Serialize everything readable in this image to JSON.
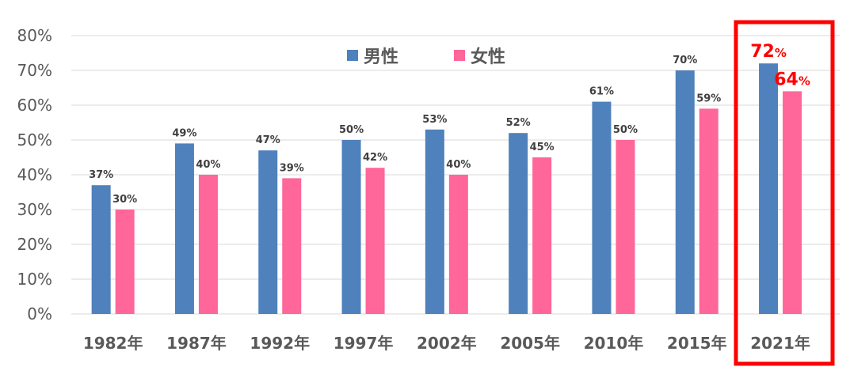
{
  "chart_data": {
    "type": "bar",
    "categories": [
      "1982年",
      "1987年",
      "1992年",
      "1997年",
      "2002年",
      "2005年",
      "2010年",
      "2015年",
      "2021年"
    ],
    "series": [
      {
        "name": "男性",
        "values": [
          37,
          49,
          47,
          50,
          53,
          52,
          61,
          70,
          72
        ]
      },
      {
        "name": "女性",
        "values": [
          30,
          40,
          39,
          42,
          40,
          45,
          50,
          59,
          64
        ]
      }
    ],
    "data_labels": [
      [
        "37%",
        "49%",
        "47%",
        "50%",
        "53%",
        "52%",
        "61%",
        "70%",
        "72%"
      ],
      [
        "30%",
        "40%",
        "39%",
        "42%",
        "40%",
        "45%",
        "50%",
        "59%",
        "64%"
      ]
    ],
    "yticks": [
      "0%",
      "10%",
      "20%",
      "30%",
      "40%",
      "50%",
      "60%",
      "70%",
      "80%"
    ],
    "ylim": [
      0,
      80
    ],
    "grid": true,
    "legend_position": "top-center",
    "highlight_category": "2021年",
    "title": "",
    "xlabel": "",
    "ylabel": ""
  },
  "colors": {
    "male": "#4f81bd",
    "female": "#ff6699",
    "highlight_frame": "#ff0000",
    "highlight_label": "#ff0000",
    "grid": "#d9d9d9"
  }
}
